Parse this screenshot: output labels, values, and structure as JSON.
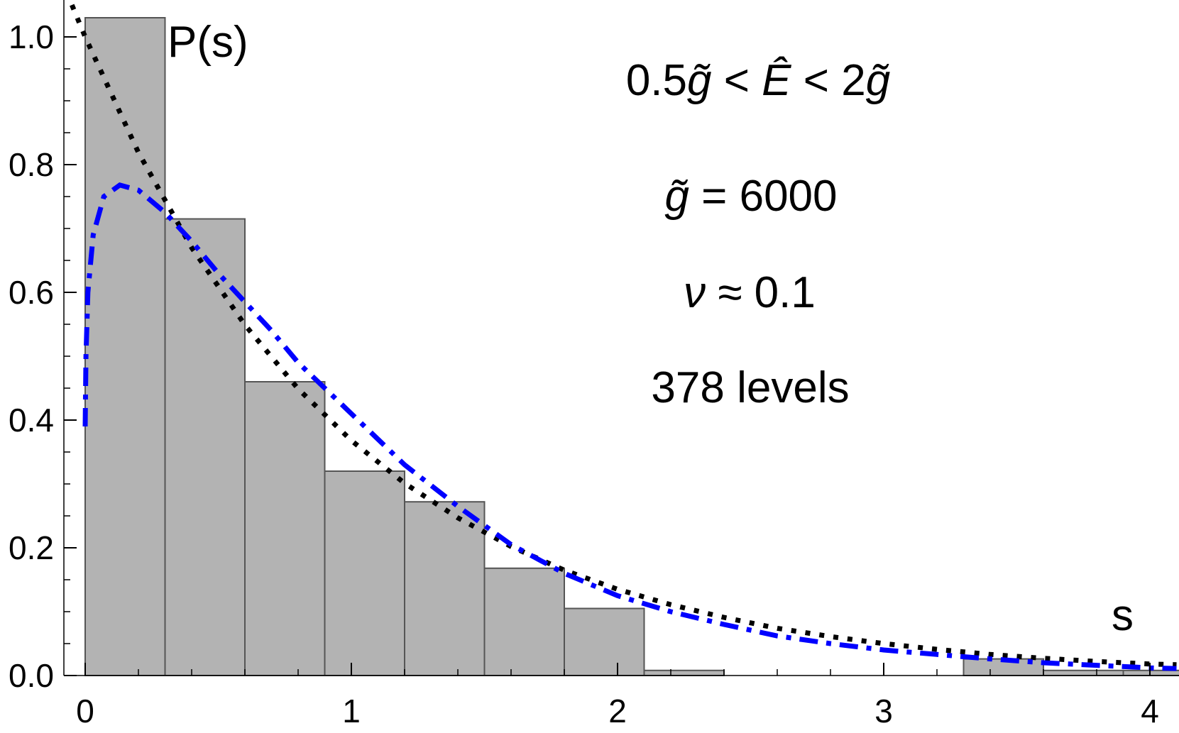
{
  "chart_data": {
    "type": "bar",
    "title": "",
    "xlabel": "s",
    "ylabel": "P(s)",
    "xlim": [
      -0.08,
      4.1
    ],
    "ylim": [
      0,
      1.06
    ],
    "bin_width": 0.3,
    "bin_starts": [
      0,
      0.3,
      0.6,
      0.9,
      1.2,
      1.5,
      1.8,
      2.1,
      2.4,
      2.7,
      3.0,
      3.3,
      3.6,
      3.9
    ],
    "values": [
      1.03,
      0.715,
      0.46,
      0.32,
      0.272,
      0.168,
      0.105,
      0.008,
      0,
      0,
      0,
      0.026,
      0.008,
      0.008
    ],
    "x_ticks": [
      0,
      1,
      2,
      3,
      4
    ],
    "y_ticks": [
      0.0,
      0.2,
      0.4,
      0.6,
      0.8,
      1.0
    ],
    "x_tick_labels": [
      "0",
      "1",
      "2",
      "3",
      "4"
    ],
    "y_tick_labels": [
      "0.0",
      "0.2",
      "0.4",
      "0.6",
      "0.8",
      "1.0"
    ],
    "series": [
      {
        "type": "line",
        "style": "dotted",
        "color": "#000000",
        "x": [
          -0.05,
          0,
          0.2,
          0.4,
          0.6,
          0.8,
          1.0,
          1.2,
          1.4,
          1.6,
          1.8,
          2.0,
          2.2,
          2.4,
          2.6,
          2.8,
          3.0,
          3.2,
          3.4,
          3.6,
          3.8,
          4.0,
          4.1
        ],
        "y": [
          1.05,
          1.0,
          0.819,
          0.67,
          0.549,
          0.449,
          0.368,
          0.301,
          0.247,
          0.202,
          0.165,
          0.135,
          0.111,
          0.091,
          0.074,
          0.061,
          0.05,
          0.041,
          0.033,
          0.027,
          0.022,
          0.018,
          0.017
        ]
      },
      {
        "type": "line",
        "style": "dash-dot",
        "color": "#0000ff",
        "x": [
          0.0,
          0.003,
          0.01,
          0.03,
          0.07,
          0.13,
          0.2,
          0.3,
          0.4,
          0.5,
          0.6,
          0.7,
          0.8,
          1.0,
          1.2,
          1.4,
          1.6,
          1.8,
          2.0,
          2.2,
          2.4,
          2.6,
          2.8,
          3.0,
          3.2,
          3.4,
          3.6,
          3.8,
          4.0,
          4.1
        ],
        "y": [
          0.39,
          0.5,
          0.6,
          0.69,
          0.75,
          0.768,
          0.76,
          0.725,
          0.68,
          0.63,
          0.585,
          0.54,
          0.49,
          0.41,
          0.33,
          0.265,
          0.205,
          0.16,
          0.125,
          0.1,
          0.08,
          0.062,
          0.05,
          0.04,
          0.033,
          0.026,
          0.02,
          0.016,
          0.012,
          0.011
        ]
      }
    ],
    "annotations": {
      "line1": {
        "a": "0.5",
        "g1": "g̃",
        "lt1": " < ",
        "e": "Ê",
        "lt2": " < ",
        "b": "2",
        "g2": "g̃"
      },
      "line2": {
        "g": "g̃",
        "rest": " = 6000"
      },
      "line3": {
        "nu": "ν",
        "rest": " ≈ 0.1"
      },
      "line4": "378 levels"
    },
    "colors": {
      "bar_fill": "#b3b3b3",
      "bar_stroke": "#555555",
      "axis": "#000000",
      "fit_curve": "#0000ff",
      "poisson_curve": "#000000"
    }
  }
}
